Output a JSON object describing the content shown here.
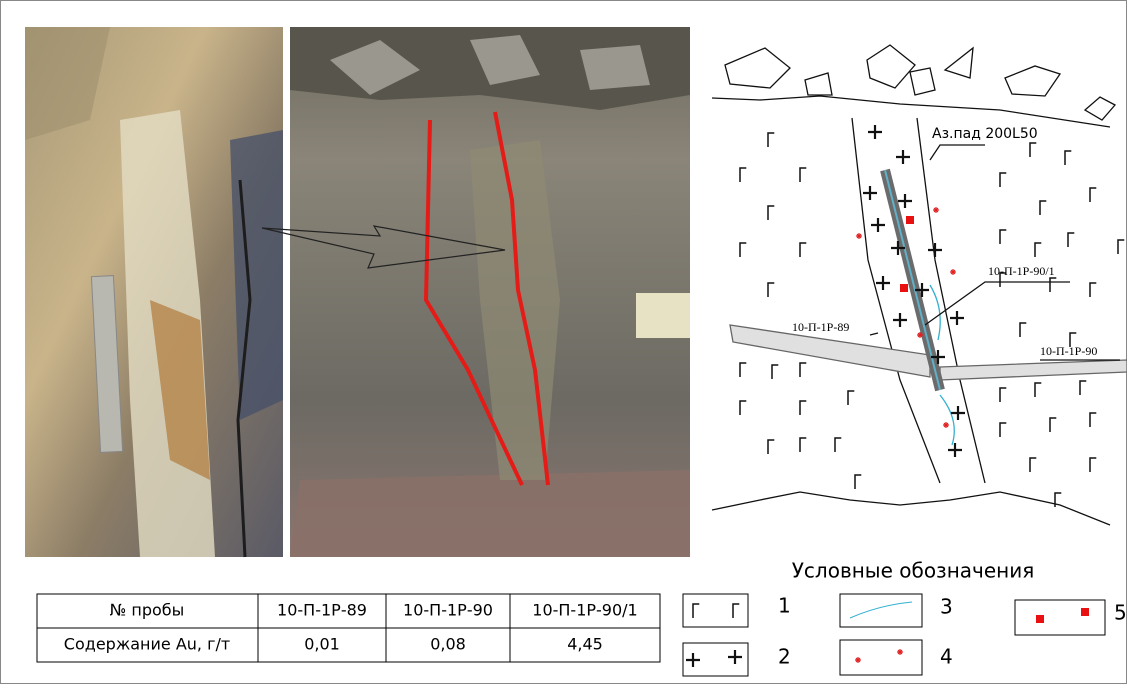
{
  "sketch": {
    "dip_label": "Аз.пад 200L50",
    "sample_labels": [
      "10-П-1Р-90/1",
      "10-П-1Р-89",
      "10-П-1Р-90"
    ]
  },
  "table": {
    "header": [
      "№ пробы",
      "10-П-1Р-89",
      "10-П-1Р-90",
      "10-П-1Р-90/1"
    ],
    "rows": [
      [
        "Содержание Au, г/т",
        "0,01",
        "0,08",
        "4,45"
      ]
    ]
  },
  "legend": {
    "title": "Условные обозначения",
    "items": [
      "1",
      "2",
      "3",
      "4",
      "5"
    ]
  }
}
